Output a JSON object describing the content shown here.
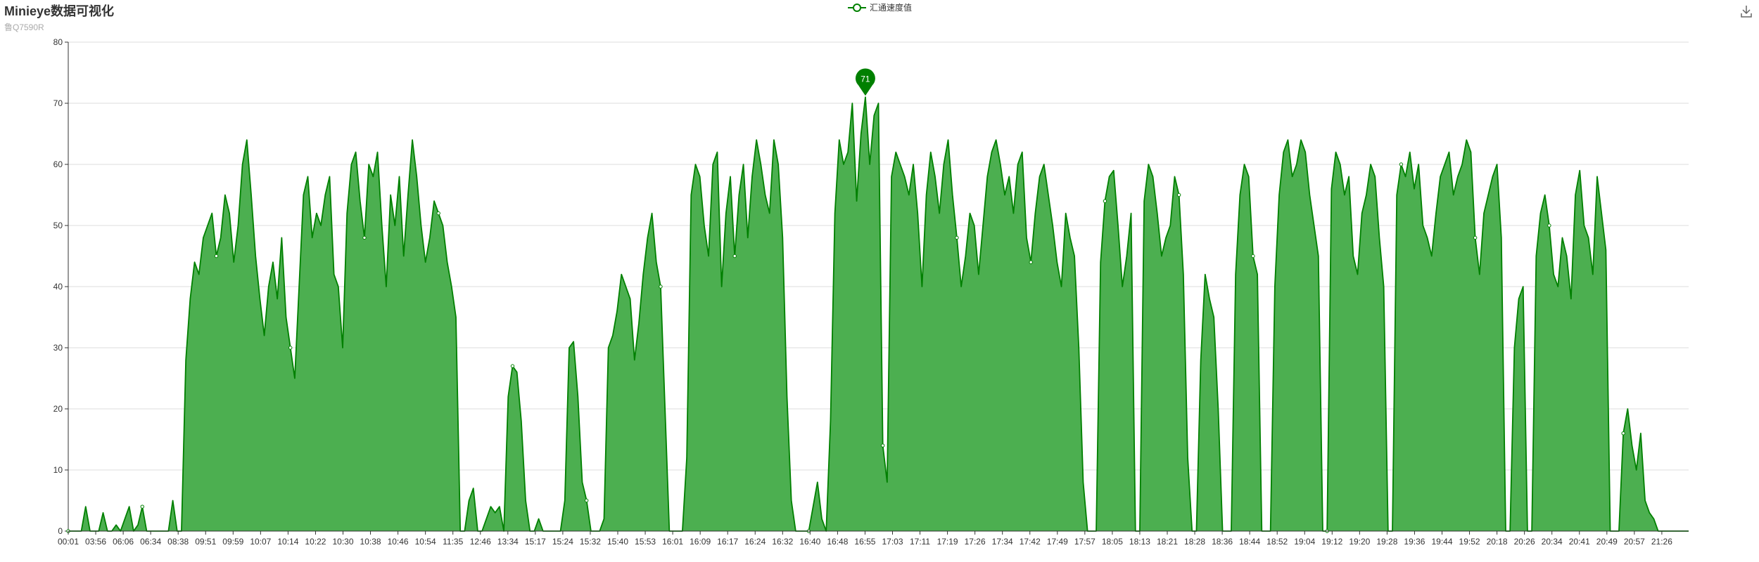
{
  "title": "Minieye数据可视化",
  "subtitle": "鲁Q7590R",
  "legend": {
    "series_name": "汇通速度值"
  },
  "toolbox": {
    "icon": "download-icon"
  },
  "colors": {
    "series": "#008000",
    "area": "#4caf50",
    "grid": "#dddddd",
    "axis": "#333333"
  },
  "chart_data": {
    "type": "area",
    "ylim": [
      0,
      80
    ],
    "y_ticks": [
      0,
      10,
      20,
      30,
      40,
      50,
      60,
      70,
      80
    ],
    "x_tick_labels": [
      "00:01",
      "03:56",
      "06:06",
      "06:34",
      "08:38",
      "09:51",
      "09:59",
      "10:07",
      "10:14",
      "10:22",
      "10:30",
      "10:38",
      "10:46",
      "10:54",
      "11:35",
      "12:46",
      "13:34",
      "15:17",
      "15:24",
      "15:32",
      "15:40",
      "15:53",
      "16:01",
      "16:09",
      "16:17",
      "16:24",
      "16:32",
      "16:40",
      "16:48",
      "16:55",
      "17:03",
      "17:11",
      "17:19",
      "17:26",
      "17:34",
      "17:42",
      "17:49",
      "17:57",
      "18:05",
      "18:13",
      "18:21",
      "18:28",
      "18:36",
      "18:44",
      "18:52",
      "19:04",
      "19:12",
      "19:20",
      "19:28",
      "19:36",
      "19:44",
      "19:52",
      "20:18",
      "20:26",
      "20:34",
      "20:41",
      "20:49",
      "20:57",
      "21:26"
    ],
    "series": [
      {
        "name": "汇通速度值",
        "values": [
          0,
          0,
          0,
          0,
          4,
          0,
          0,
          0,
          3,
          0,
          0,
          1,
          0,
          2,
          4,
          0,
          1,
          4,
          0,
          0,
          0,
          0,
          0,
          0,
          5,
          0,
          0,
          28,
          38,
          44,
          42,
          48,
          50,
          52,
          45,
          48,
          55,
          52,
          44,
          50,
          60,
          64,
          55,
          45,
          38,
          32,
          40,
          44,
          38,
          48,
          35,
          30,
          25,
          40,
          55,
          58,
          48,
          52,
          50,
          55,
          58,
          42,
          40,
          30,
          52,
          60,
          62,
          54,
          48,
          60,
          58,
          62,
          50,
          40,
          55,
          50,
          58,
          45,
          55,
          64,
          58,
          50,
          44,
          48,
          54,
          52,
          50,
          44,
          40,
          35,
          0,
          0,
          5,
          7,
          0,
          0,
          2,
          4,
          3,
          4,
          0,
          22,
          27,
          26,
          18,
          5,
          0,
          0,
          2,
          0,
          0,
          0,
          0,
          0,
          5,
          30,
          31,
          22,
          8,
          5,
          0,
          0,
          0,
          2,
          30,
          32,
          36,
          42,
          40,
          38,
          28,
          34,
          42,
          48,
          52,
          44,
          40,
          20,
          0,
          0,
          0,
          0,
          12,
          55,
          60,
          58,
          50,
          45,
          60,
          62,
          40,
          52,
          58,
          45,
          55,
          60,
          48,
          58,
          64,
          60,
          55,
          52,
          64,
          60,
          48,
          22,
          5,
          0,
          0,
          0,
          0,
          4,
          8,
          2,
          0,
          18,
          52,
          64,
          60,
          62,
          70,
          54,
          65,
          71,
          60,
          68,
          70,
          14,
          8,
          58,
          62,
          60,
          58,
          55,
          60,
          52,
          40,
          55,
          62,
          58,
          52,
          60,
          64,
          55,
          48,
          40,
          45,
          52,
          50,
          42,
          50,
          58,
          62,
          64,
          60,
          55,
          58,
          52,
          60,
          62,
          48,
          44,
          52,
          58,
          60,
          55,
          50,
          44,
          40,
          52,
          48,
          45,
          30,
          8,
          0,
          0,
          0,
          44,
          54,
          58,
          59,
          50,
          40,
          45,
          52,
          0,
          0,
          54,
          60,
          58,
          52,
          45,
          48,
          50,
          58,
          55,
          42,
          12,
          0,
          0,
          28,
          42,
          38,
          35,
          20,
          0,
          0,
          0,
          42,
          55,
          60,
          58,
          45,
          42,
          0,
          0,
          0,
          40,
          55,
          62,
          64,
          58,
          60,
          64,
          62,
          55,
          50,
          45,
          0,
          0,
          56,
          62,
          60,
          55,
          58,
          45,
          42,
          52,
          55,
          60,
          58,
          48,
          40,
          0,
          0,
          55,
          60,
          58,
          62,
          56,
          60,
          50,
          48,
          45,
          52,
          58,
          60,
          62,
          55,
          58,
          60,
          64,
          62,
          48,
          42,
          52,
          55,
          58,
          60,
          48,
          0,
          0,
          30,
          38,
          40,
          0,
          0,
          45,
          52,
          55,
          50,
          42,
          40,
          48,
          45,
          38,
          55,
          59,
          50,
          48,
          42,
          58,
          52,
          46,
          0,
          0,
          0,
          16,
          20,
          14,
          10,
          16,
          5,
          3,
          2,
          0,
          0,
          0,
          0,
          0,
          0,
          0,
          0
        ]
      }
    ],
    "max_marker": {
      "value": 71
    }
  }
}
